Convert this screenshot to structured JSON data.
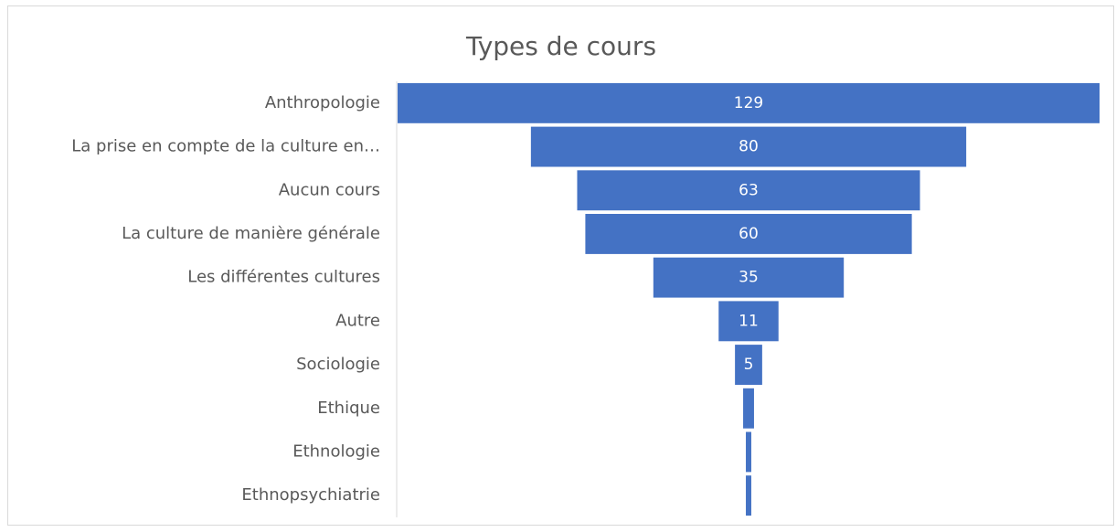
{
  "chart_data": {
    "type": "funnel",
    "title": "Types de cours",
    "categories": [
      "Anthropologie",
      "La prise en compte de la culture en…",
      "Aucun cours",
      "La culture de manière générale",
      "Les différentes cultures",
      "Autre",
      "Sociologie",
      "Ethique",
      "Ethnologie",
      "Ethnopsychiatrie"
    ],
    "values": [
      129,
      80,
      63,
      60,
      35,
      11,
      5,
      2,
      1,
      1
    ],
    "color": "#4472c4"
  }
}
